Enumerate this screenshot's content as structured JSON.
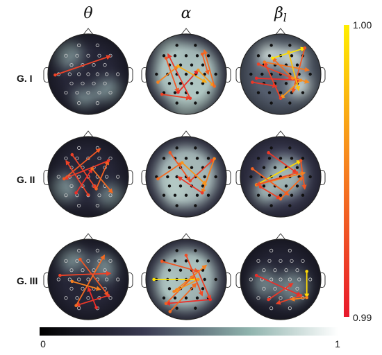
{
  "columns": [
    {
      "symbol": "θ",
      "sub": ""
    },
    {
      "symbol": "α",
      "sub": ""
    },
    {
      "symbol": "β",
      "sub": "l"
    }
  ],
  "rows": [
    "G. I",
    "G. II",
    "G. III"
  ],
  "colorbar_vertical": {
    "max_label": "1.00",
    "min_label": "0.99",
    "min": 0.99,
    "max": 1.0
  },
  "colorbar_horizontal": {
    "min_label": "0",
    "max_label": "1",
    "min": 0,
    "max": 1
  },
  "colors": {
    "hot_low": "#e8192c",
    "hot_high": "#ffee00",
    "map_dark": "#0b0b14",
    "map_light": "#e8f2ee"
  },
  "maps": [
    {
      "row": 0,
      "col": 0,
      "blobs": [
        [
          -0.5,
          -0.5,
          0.35,
          0.35
        ],
        [
          0.5,
          0.4,
          0.35,
          0.3
        ],
        [
          -0.1,
          0.6,
          0.3,
          0.25
        ]
      ],
      "base": 0.22,
      "edges": [
        [
          -0.82,
          0.02,
          0.55,
          -0.45,
          0.2
        ]
      ]
    },
    {
      "row": 0,
      "col": 1,
      "blobs": [
        [
          0,
          0,
          0.85,
          0.85
        ],
        [
          -0.4,
          -0.3,
          0.4,
          0.7
        ],
        [
          0.4,
          0.2,
          0.4,
          0.7
        ],
        [
          0.0,
          0.7,
          0.4,
          0.6
        ]
      ],
      "base": 0.38,
      "edges": [
        [
          -0.5,
          -0.4,
          -0.2,
          0.45,
          0.3
        ],
        [
          -0.2,
          0.45,
          0.3,
          -0.1,
          0.1
        ],
        [
          0.3,
          -0.1,
          0.7,
          0.3,
          0.6
        ],
        [
          0.7,
          0.3,
          0.45,
          -0.6,
          0.4
        ],
        [
          -0.6,
          0.5,
          0.1,
          0.6,
          0.2
        ],
        [
          0.1,
          0.6,
          -0.45,
          -0.5,
          0.15
        ],
        [
          -0.7,
          0.2,
          -0.2,
          -0.2,
          0.5
        ],
        [
          -0.2,
          -0.2,
          0.5,
          0.2,
          0.7
        ],
        [
          0.4,
          -0.5,
          0.55,
          0.0,
          0.35
        ]
      ]
    },
    {
      "row": 0,
      "col": 2,
      "blobs": [
        [
          0.3,
          -0.4,
          0.35,
          0.3
        ],
        [
          -0.3,
          -0.5,
          0.3,
          0.3
        ],
        [
          0.5,
          0.3,
          0.3,
          0.3
        ]
      ],
      "base": 0.5,
      "edges": [
        [
          -0.55,
          -0.25,
          0.3,
          0.1,
          0.2
        ],
        [
          0.3,
          0.1,
          -0.2,
          -0.4,
          0.4
        ],
        [
          -0.2,
          -0.4,
          0.6,
          -0.65,
          0.95
        ],
        [
          0.6,
          -0.65,
          0.3,
          0.45,
          0.3
        ],
        [
          -0.6,
          0.1,
          0.5,
          0.15,
          0.1
        ],
        [
          0.5,
          0.15,
          0.0,
          0.6,
          0.6
        ],
        [
          0.0,
          0.6,
          -0.4,
          -0.3,
          0.2
        ],
        [
          -0.4,
          -0.3,
          0.7,
          -0.1,
          0.45
        ],
        [
          0.2,
          -0.55,
          0.45,
          0.4,
          0.8
        ],
        [
          -0.7,
          0.2,
          -0.1,
          0.3,
          0.15
        ],
        [
          0.3,
          0.1,
          0.7,
          0.2,
          0.55
        ]
      ]
    },
    {
      "row": 1,
      "col": 0,
      "blobs": [
        [
          -0.6,
          0.3,
          0.35,
          0.35
        ],
        [
          0.6,
          0.5,
          0.35,
          0.3
        ]
      ],
      "base": 0.22,
      "edges": [
        [
          -0.4,
          -0.55,
          0.2,
          0.3,
          0.2
        ],
        [
          0.2,
          0.3,
          0.5,
          -0.4,
          0.35
        ],
        [
          0.5,
          -0.4,
          -0.6,
          0.05,
          0.15
        ],
        [
          -0.6,
          0.05,
          0.3,
          -0.7,
          0.3
        ],
        [
          -0.3,
          0.4,
          0.1,
          -0.2,
          0.1
        ],
        [
          0.1,
          -0.2,
          0.6,
          0.4,
          0.4
        ],
        [
          0.0,
          0.45,
          -0.55,
          -0.4,
          0.2
        ]
      ]
    },
    {
      "row": 1,
      "col": 1,
      "blobs": [
        [
          0,
          0,
          0.8,
          0.8
        ],
        [
          -0.3,
          0.3,
          0.35,
          0.5
        ]
      ],
      "base": 0.4,
      "edges": [
        [
          -0.4,
          -0.6,
          0.1,
          0.1,
          0.3
        ],
        [
          0.1,
          0.1,
          0.7,
          -0.45,
          0.2
        ],
        [
          0.7,
          -0.45,
          0.4,
          0.4,
          0.5
        ],
        [
          0.4,
          0.4,
          -0.2,
          0.0,
          0.15
        ],
        [
          -0.7,
          0.05,
          -0.1,
          -0.35,
          0.4
        ],
        [
          -0.1,
          -0.35,
          0.5,
          0.2,
          0.6
        ]
      ]
    },
    {
      "row": 1,
      "col": 2,
      "blobs": [
        [
          0.1,
          0.0,
          0.5,
          0.5
        ],
        [
          -0.4,
          0.4,
          0.3,
          0.3
        ]
      ],
      "base": 0.38,
      "edges": [
        [
          -0.6,
          0.2,
          0.5,
          -0.4,
          0.9
        ],
        [
          0.5,
          -0.4,
          0.6,
          0.3,
          0.3
        ],
        [
          -0.6,
          0.2,
          0.6,
          -0.1,
          0.5
        ],
        [
          -0.5,
          0.25,
          0.0,
          0.55,
          0.2
        ],
        [
          0.0,
          0.55,
          0.55,
          0.0,
          0.4
        ],
        [
          -0.3,
          -0.6,
          0.4,
          -0.1,
          0.15
        ],
        [
          0.4,
          -0.1,
          -0.6,
          0.2,
          0.25
        ],
        [
          -0.7,
          -0.2,
          0.2,
          0.45,
          0.35
        ]
      ]
    },
    {
      "row": 2,
      "col": 0,
      "blobs": [
        [
          -0.4,
          -0.5,
          0.35,
          0.3
        ],
        [
          0.4,
          -0.3,
          0.3,
          0.35
        ]
      ],
      "base": 0.22,
      "edges": [
        [
          -0.2,
          -0.5,
          0.5,
          0.4,
          0.3
        ],
        [
          0.5,
          0.4,
          -0.3,
          0.65,
          0.15
        ],
        [
          -0.3,
          0.65,
          0.4,
          -0.6,
          0.4
        ],
        [
          -0.7,
          -0.1,
          0.55,
          -0.15,
          0.2
        ],
        [
          0.2,
          0.7,
          0.0,
          0.2,
          0.1
        ],
        [
          -0.4,
          0.05,
          0.3,
          0.25,
          0.5
        ]
      ]
    },
    {
      "row": 2,
      "col": 1,
      "blobs": [
        [
          0,
          0,
          0.8,
          0.8
        ],
        [
          -0.4,
          0.2,
          0.4,
          0.5
        ],
        [
          0.3,
          -0.4,
          0.3,
          0.3
        ]
      ],
      "base": 0.38,
      "edges": [
        [
          -0.6,
          -0.45,
          0.3,
          -0.2,
          0.3
        ],
        [
          0.3,
          -0.2,
          0.6,
          0.5,
          0.2
        ],
        [
          0.6,
          0.5,
          -0.5,
          0.6,
          0.1
        ],
        [
          -0.5,
          0.6,
          0.2,
          -0.1,
          0.35
        ],
        [
          -0.8,
          0.0,
          0.3,
          0.0,
          0.95
        ],
        [
          0.3,
          0.0,
          -0.3,
          0.3,
          0.6
        ],
        [
          -0.3,
          0.3,
          0.5,
          -0.35,
          0.5
        ],
        [
          0.0,
          -0.6,
          0.4,
          0.4,
          0.25
        ],
        [
          -0.4,
          0.8,
          0.25,
          0.1,
          0.4
        ]
      ]
    },
    {
      "row": 2,
      "col": 2,
      "blobs": [
        [
          0.3,
          0.2,
          0.4,
          0.4
        ],
        [
          -0.4,
          0.1,
          0.3,
          0.35
        ]
      ],
      "base": 0.2,
      "edges": [
        [
          -0.6,
          -0.1,
          0.5,
          0.4,
          0.1
        ],
        [
          0.5,
          0.4,
          -0.1,
          0.6,
          0.2
        ],
        [
          0.65,
          -0.2,
          0.65,
          0.45,
          0.9
        ],
        [
          0.65,
          0.45,
          0.25,
          0.5,
          0.5
        ],
        [
          -0.3,
          0.5,
          0.3,
          0.1,
          0.15
        ]
      ]
    }
  ]
}
